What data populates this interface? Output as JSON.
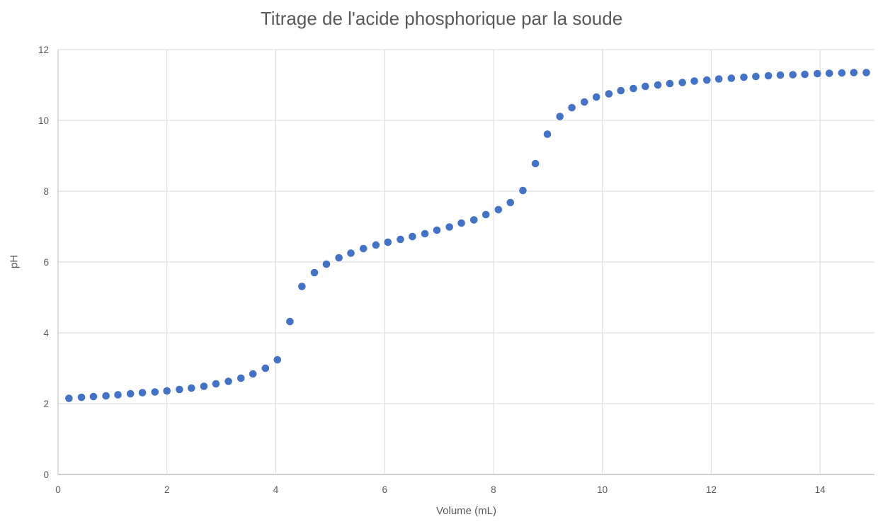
{
  "chart_data": {
    "type": "scatter",
    "title": "Titrage de l'acide phosphorique par la soude",
    "xlabel": "Volume (mL)",
    "ylabel": "pH",
    "xlim": [
      0,
      15
    ],
    "ylim": [
      0,
      12
    ],
    "x_ticks": [
      0,
      2,
      4,
      6,
      8,
      10,
      12,
      14
    ],
    "y_ticks": [
      0,
      2,
      4,
      6,
      8,
      10,
      12
    ],
    "grid": true,
    "legend": false,
    "marker": {
      "shape": "circle",
      "color": "#4472C4",
      "radius_px": 5.3
    },
    "colors": {
      "marker": "#4472C4",
      "gridline": "#D9D9D9",
      "axis_line": "#BFBFBF",
      "text": "#595959",
      "background": "#FFFFFF"
    },
    "series": [
      {
        "name": "pH",
        "x": [
          0.2,
          0.43,
          0.65,
          0.88,
          1.1,
          1.33,
          1.55,
          1.78,
          2.0,
          2.23,
          2.45,
          2.68,
          2.9,
          3.13,
          3.36,
          3.58,
          3.81,
          4.03,
          4.26,
          4.48,
          4.71,
          4.93,
          5.16,
          5.38,
          5.61,
          5.84,
          6.06,
          6.29,
          6.51,
          6.74,
          6.96,
          7.19,
          7.41,
          7.64,
          7.86,
          8.09,
          8.31,
          8.54,
          8.77,
          8.99,
          9.22,
          9.44,
          9.67,
          9.89,
          10.12,
          10.34,
          10.57,
          10.79,
          11.02,
          11.24,
          11.47,
          11.69,
          11.92,
          12.14,
          12.37,
          12.6,
          12.82,
          13.05,
          13.27,
          13.5,
          13.72,
          13.95,
          14.17,
          14.4,
          14.62,
          14.85
        ],
        "y": [
          2.15,
          2.18,
          2.2,
          2.22,
          2.25,
          2.28,
          2.31,
          2.33,
          2.36,
          2.4,
          2.44,
          2.49,
          2.56,
          2.63,
          2.72,
          2.84,
          3.0,
          3.24,
          4.32,
          5.31,
          5.7,
          5.94,
          6.12,
          6.25,
          6.38,
          6.48,
          6.56,
          6.64,
          6.72,
          6.8,
          6.9,
          6.99,
          7.1,
          7.19,
          7.34,
          7.48,
          7.68,
          8.02,
          8.78,
          9.61,
          10.11,
          10.36,
          10.52,
          10.66,
          10.75,
          10.84,
          10.9,
          10.96,
          11.0,
          11.04,
          11.07,
          11.11,
          11.14,
          11.17,
          11.19,
          11.22,
          11.24,
          11.26,
          11.28,
          11.29,
          11.3,
          11.32,
          11.33,
          11.34,
          11.35,
          11.35
        ]
      }
    ]
  }
}
